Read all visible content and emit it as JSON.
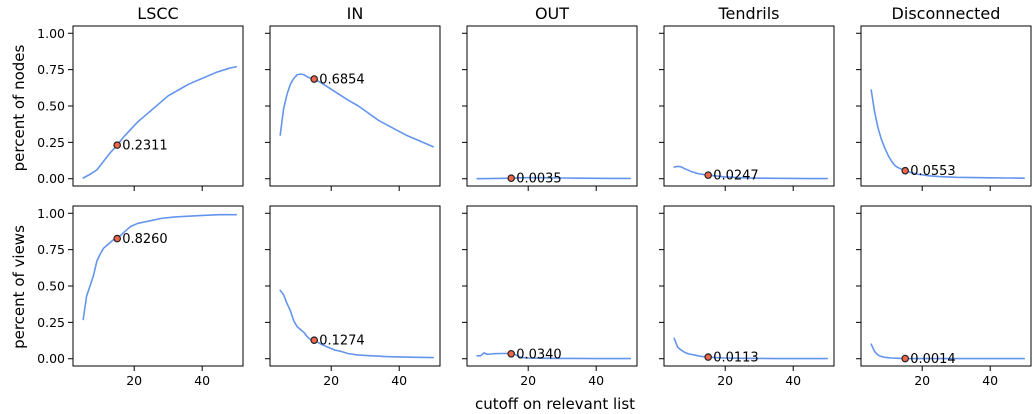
{
  "figure": {
    "xlabel": "cutoff on relevant list",
    "row_labels": [
      "percent of nodes",
      "percent of views"
    ],
    "column_titles": [
      "LSCC",
      "IN",
      "OUT",
      "Tendrils",
      "Disconnected"
    ]
  },
  "colors": {
    "line": "#6495ed",
    "marker_fill": "#f4664a",
    "marker_edge": "#222222",
    "axes": "#000000"
  },
  "chart_data": [
    {
      "type": "line",
      "title": "LSCC",
      "ylabel": "percent of nodes",
      "xlim": [
        2,
        52
      ],
      "ylim": [
        -0.05,
        1.05
      ],
      "xticks": [
        20,
        40
      ],
      "yticks": [
        0.0,
        0.25,
        0.5,
        0.75,
        1.0
      ],
      "ytick_labels": [
        "0.00",
        "0.25",
        "0.50",
        "0.75",
        "1.00"
      ],
      "x": [
        5,
        7,
        9,
        11,
        13,
        15,
        17,
        19,
        21,
        23,
        25,
        27,
        30,
        33,
        36,
        40,
        44,
        48,
        50
      ],
      "y": [
        0.005,
        0.03,
        0.06,
        0.12,
        0.18,
        0.2311,
        0.29,
        0.34,
        0.39,
        0.43,
        0.47,
        0.51,
        0.57,
        0.61,
        0.65,
        0.69,
        0.73,
        0.76,
        0.77
      ],
      "annotation": {
        "x": 15,
        "y": 0.2311,
        "label": "0.2311"
      }
    },
    {
      "type": "line",
      "title": "IN",
      "xlim": [
        2,
        52
      ],
      "ylim": [
        -0.05,
        1.05
      ],
      "xticks": [
        20,
        40
      ],
      "yticks": [
        0.0,
        0.25,
        0.5,
        0.75,
        1.0
      ],
      "x": [
        5,
        6,
        7,
        8,
        9,
        10,
        11,
        12,
        13,
        14,
        15,
        17,
        19,
        21,
        23,
        25,
        28,
        31,
        34,
        38,
        42,
        46,
        50
      ],
      "y": [
        0.3,
        0.48,
        0.58,
        0.65,
        0.69,
        0.715,
        0.72,
        0.715,
        0.7,
        0.69,
        0.6854,
        0.66,
        0.63,
        0.6,
        0.57,
        0.54,
        0.5,
        0.45,
        0.4,
        0.35,
        0.3,
        0.26,
        0.22
      ],
      "annotation": {
        "x": 15,
        "y": 0.6854,
        "label": "0.6854"
      }
    },
    {
      "type": "line",
      "title": "OUT",
      "xlim": [
        2,
        52
      ],
      "ylim": [
        -0.05,
        1.05
      ],
      "xticks": [
        20,
        40
      ],
      "yticks": [
        0.0,
        0.25,
        0.5,
        0.75,
        1.0
      ],
      "x": [
        5,
        8,
        11,
        13,
        15,
        17,
        20,
        25,
        30,
        35,
        40,
        45,
        50
      ],
      "y": [
        0.0,
        0.001,
        0.002,
        0.003,
        0.0035,
        0.006,
        0.007,
        0.006,
        0.005,
        0.004,
        0.003,
        0.002,
        0.002
      ],
      "annotation": {
        "x": 15,
        "y": 0.0035,
        "label": "0.0035"
      }
    },
    {
      "type": "line",
      "title": "Tendrils",
      "xlim": [
        2,
        52
      ],
      "ylim": [
        -0.05,
        1.05
      ],
      "xticks": [
        20,
        40
      ],
      "yticks": [
        0.0,
        0.25,
        0.5,
        0.75,
        1.0
      ],
      "x": [
        5,
        6,
        7,
        8,
        10,
        12,
        14,
        15,
        17,
        20,
        25,
        30,
        35,
        40,
        45,
        50
      ],
      "y": [
        0.08,
        0.085,
        0.082,
        0.07,
        0.05,
        0.035,
        0.028,
        0.0247,
        0.02,
        0.012,
        0.006,
        0.004,
        0.003,
        0.002,
        0.001,
        0.001
      ],
      "annotation": {
        "x": 15,
        "y": 0.0247,
        "label": "0.0247"
      }
    },
    {
      "type": "line",
      "title": "Disconnected",
      "xlim": [
        2,
        52
      ],
      "ylim": [
        -0.05,
        1.05
      ],
      "xticks": [
        20,
        40
      ],
      "yticks": [
        0.0,
        0.25,
        0.5,
        0.75,
        1.0
      ],
      "x": [
        5,
        6,
        7,
        8,
        9,
        10,
        11,
        12,
        13,
        14,
        15,
        17,
        19,
        22,
        25,
        30,
        35,
        40,
        45,
        50
      ],
      "y": [
        0.61,
        0.46,
        0.35,
        0.27,
        0.21,
        0.16,
        0.12,
        0.09,
        0.075,
        0.065,
        0.0553,
        0.04,
        0.03,
        0.02,
        0.015,
        0.01,
        0.008,
        0.006,
        0.005,
        0.004
      ],
      "annotation": {
        "x": 15,
        "y": 0.0553,
        "label": "0.0553"
      }
    },
    {
      "type": "line",
      "title": "",
      "ylabel": "percent of views",
      "xlim": [
        2,
        52
      ],
      "ylim": [
        -0.05,
        1.05
      ],
      "xticks": [
        20,
        40
      ],
      "xtick_labels": [
        "20",
        "40"
      ],
      "yticks": [
        0.0,
        0.25,
        0.5,
        0.75,
        1.0
      ],
      "ytick_labels": [
        "0.00",
        "0.25",
        "0.50",
        "0.75",
        "1.00"
      ],
      "x": [
        5,
        6,
        7,
        8,
        9,
        10,
        11,
        12,
        13,
        14,
        15,
        17,
        19,
        21,
        23,
        25,
        28,
        32,
        36,
        40,
        45,
        50
      ],
      "y": [
        0.27,
        0.43,
        0.5,
        0.57,
        0.67,
        0.72,
        0.76,
        0.78,
        0.8,
        0.82,
        0.826,
        0.87,
        0.91,
        0.93,
        0.94,
        0.95,
        0.965,
        0.975,
        0.98,
        0.985,
        0.99,
        0.99
      ],
      "annotation": {
        "x": 15,
        "y": 0.826,
        "label": "0.8260"
      }
    },
    {
      "type": "line",
      "title": "",
      "xlim": [
        2,
        52
      ],
      "ylim": [
        -0.05,
        1.05
      ],
      "xticks": [
        20,
        40
      ],
      "xtick_labels": [
        "20",
        "40"
      ],
      "yticks": [
        0.0,
        0.25,
        0.5,
        0.75,
        1.0
      ],
      "x": [
        5,
        6,
        7,
        8,
        9,
        10,
        11,
        12,
        13,
        14,
        15,
        17,
        19,
        21,
        23,
        25,
        28,
        32,
        36,
        40,
        45,
        50
      ],
      "y": [
        0.47,
        0.44,
        0.38,
        0.33,
        0.26,
        0.22,
        0.2,
        0.18,
        0.15,
        0.13,
        0.1274,
        0.1,
        0.08,
        0.06,
        0.05,
        0.035,
        0.025,
        0.02,
        0.015,
        0.012,
        0.01,
        0.008
      ],
      "annotation": {
        "x": 15,
        "y": 0.1274,
        "label": "0.1274"
      }
    },
    {
      "type": "line",
      "title": "",
      "xlim": [
        2,
        52
      ],
      "ylim": [
        -0.05,
        1.05
      ],
      "xticks": [
        20,
        40
      ],
      "xtick_labels": [
        "20",
        "40"
      ],
      "yticks": [
        0.0,
        0.25,
        0.5,
        0.75,
        1.0
      ],
      "x": [
        5,
        6,
        7,
        8,
        10,
        12,
        14,
        15,
        16,
        18,
        20,
        25,
        30,
        35,
        40,
        45,
        50
      ],
      "y": [
        0.02,
        0.02,
        0.04,
        0.03,
        0.035,
        0.036,
        0.036,
        0.034,
        0.03,
        0.008,
        0.005,
        0.003,
        0.002,
        0.002,
        0.001,
        0.001,
        0.001
      ],
      "annotation": {
        "x": 15,
        "y": 0.034,
        "label": "0.0340"
      }
    },
    {
      "type": "line",
      "title": "",
      "xlim": [
        2,
        52
      ],
      "ylim": [
        -0.05,
        1.05
      ],
      "xticks": [
        20,
        40
      ],
      "xtick_labels": [
        "20",
        "40"
      ],
      "yticks": [
        0.0,
        0.25,
        0.5,
        0.75,
        1.0
      ],
      "x": [
        5,
        6,
        7,
        8,
        9,
        10,
        11,
        12,
        13,
        14,
        15,
        17,
        20,
        25,
        30,
        35,
        40,
        45,
        50
      ],
      "y": [
        0.14,
        0.08,
        0.06,
        0.045,
        0.035,
        0.03,
        0.025,
        0.02,
        0.016,
        0.014,
        0.0113,
        0.008,
        0.005,
        0.003,
        0.002,
        0.001,
        0.001,
        0.001,
        0.001
      ],
      "annotation": {
        "x": 15,
        "y": 0.0113,
        "label": "0.0113"
      }
    },
    {
      "type": "line",
      "title": "",
      "xlim": [
        2,
        52
      ],
      "ylim": [
        -0.05,
        1.05
      ],
      "xticks": [
        20,
        40
      ],
      "xtick_labels": [
        "20",
        "40"
      ],
      "yticks": [
        0.0,
        0.25,
        0.5,
        0.75,
        1.0
      ],
      "x": [
        5,
        6,
        7,
        8,
        9,
        10,
        11,
        12,
        13,
        14,
        15,
        17,
        20,
        25,
        30,
        35,
        40,
        45,
        50
      ],
      "y": [
        0.1,
        0.05,
        0.025,
        0.015,
        0.01,
        0.007,
        0.005,
        0.004,
        0.003,
        0.002,
        0.0014,
        0.001,
        0.001,
        0.001,
        0.001,
        0.001,
        0.001,
        0.001,
        0.001
      ],
      "annotation": {
        "x": 15,
        "y": 0.0014,
        "label": "0.0014"
      }
    }
  ]
}
